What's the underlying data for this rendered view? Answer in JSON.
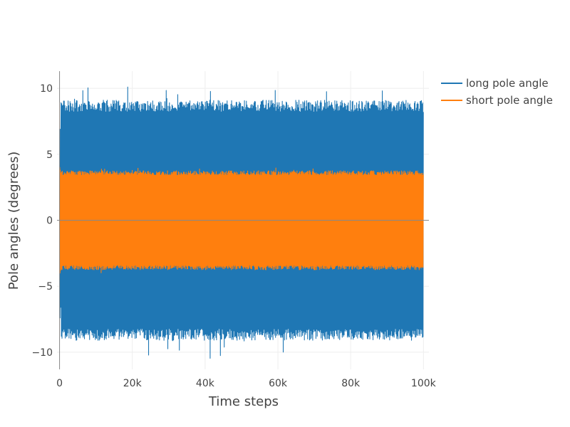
{
  "chart_data": {
    "type": "line",
    "title": "",
    "xlabel": "Time steps",
    "ylabel": "Pole angles (degrees)",
    "x_range": [
      -700,
      101500
    ],
    "y_range": [
      -11.3,
      11.3
    ],
    "x_ticks": [
      0,
      20000,
      40000,
      60000,
      80000,
      100000
    ],
    "x_tick_labels": [
      "0",
      "20k",
      "40k",
      "60k",
      "80k",
      "100k"
    ],
    "y_ticks": [
      10,
      5,
      0,
      -5,
      -10
    ],
    "y_tick_labels": [
      "10",
      "5",
      "0",
      "−5",
      "−10"
    ],
    "x_extent": [
      0,
      100000
    ],
    "grid": true,
    "zero_lines": true,
    "legend_position": "top-right",
    "series": [
      {
        "name": "long pole angle",
        "color": "#1f77b4",
        "amplitude_typical": 9.1,
        "observed_max": 10.1,
        "observed_min": -10.5,
        "startup_values": [
          0,
          4.2,
          -7.4,
          6.9,
          -6.6,
          5.8
        ]
      },
      {
        "name": "short pole angle",
        "color": "#ff7f0e",
        "amplitude_typical": 3.75,
        "observed_max": 4.0,
        "observed_min": -4.0,
        "startup_values": [
          0,
          4.0,
          -4.0,
          3.8,
          -3.8,
          3.6
        ]
      }
    ]
  }
}
